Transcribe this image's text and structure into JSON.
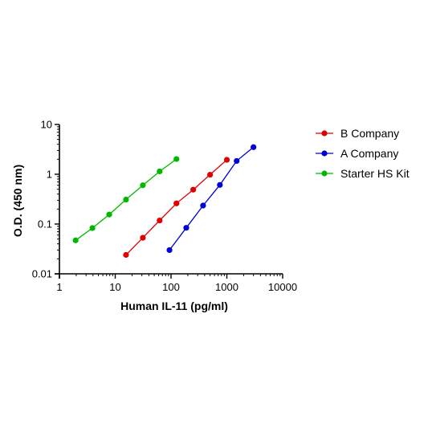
{
  "chart_data": {
    "type": "scatter",
    "title": "",
    "xlabel": "Human IL-11 (pg/ml)",
    "ylabel": "O.D. (450 nm)",
    "xscale": "log",
    "yscale": "log",
    "xlim": [
      1,
      10000
    ],
    "ylim": [
      0.01,
      10
    ],
    "xticks": [
      1,
      10,
      100,
      1000,
      10000
    ],
    "xtick_labels": [
      "1",
      "10",
      "100",
      "1000",
      "10000"
    ],
    "yticks": [
      0.01,
      0.1,
      1,
      10
    ],
    "ytick_labels": [
      "0.01",
      "0.1",
      "1",
      "10"
    ],
    "grid": false,
    "legend_position": "right",
    "series": [
      {
        "name": "B Company",
        "color": "#e00000",
        "x": [
          15.6,
          31.25,
          62.5,
          125,
          250,
          500,
          1000
        ],
        "y": [
          0.024,
          0.053,
          0.118,
          0.26,
          0.49,
          0.98,
          1.95
        ]
      },
      {
        "name": "A Company",
        "color": "#0000d8",
        "x": [
          93.75,
          187.5,
          375,
          750,
          1500,
          3000
        ],
        "y": [
          0.03,
          0.084,
          0.235,
          0.61,
          1.85,
          3.5
        ]
      },
      {
        "name": "Starter HS Kit",
        "color": "#00b800",
        "x": [
          1.95,
          3.9,
          7.8,
          15.6,
          31.25,
          62.5,
          125
        ],
        "y": [
          0.047,
          0.083,
          0.155,
          0.31,
          0.6,
          1.14,
          2.02
        ]
      }
    ]
  }
}
